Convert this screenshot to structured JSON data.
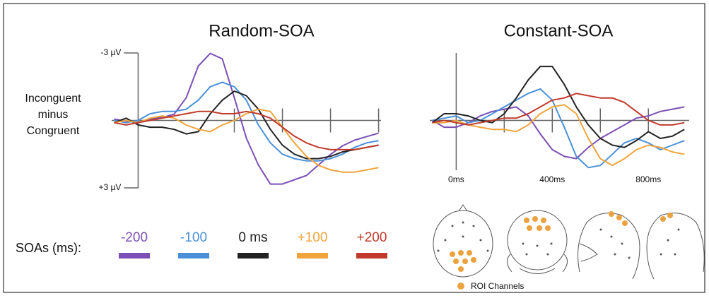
{
  "chart_data": [
    {
      "type": "line",
      "title": "Random-SOA",
      "ylabel": [
        "Inconguent",
        "minus",
        "Congruent"
      ],
      "legend_title": "SOAs (ms):",
      "xlim": [
        -110,
        1010
      ],
      "ylim": [
        3,
        -3
      ],
      "yticks": [
        {
          "value": -3,
          "label": "-3 µV"
        },
        {
          "value": 3,
          "label": "+3 µV"
        }
      ],
      "minor_xticks": [
        400,
        600,
        800,
        1000
      ],
      "x": [
        -100,
        -50,
        0,
        50,
        100,
        150,
        200,
        250,
        300,
        350,
        400,
        450,
        500,
        550,
        600,
        650,
        700,
        750,
        800,
        850,
        900,
        950,
        1000
      ],
      "series": [
        {
          "name": "-200",
          "color": "#7b4fb5",
          "values": [
            -0.06,
            0.03,
            0.09,
            -0.06,
            -0.13,
            -0.28,
            -1.01,
            -2.42,
            -2.98,
            -2.74,
            -1.01,
            0.79,
            1.98,
            2.83,
            2.83,
            2.64,
            2.45,
            1.98,
            1.51,
            1.13,
            0.88,
            0.72,
            0.57
          ]
        },
        {
          "name": "-100",
          "color": "#4a90d9",
          "values": [
            0.0,
            0.1,
            0.0,
            -0.3,
            -0.4,
            -0.4,
            -0.5,
            -0.9,
            -1.5,
            -1.7,
            -1.5,
            -0.9,
            0.2,
            1.0,
            1.5,
            1.7,
            1.8,
            1.8,
            1.7,
            1.5,
            1.2,
            1.0,
            0.9
          ]
        },
        {
          "name": "0 ms",
          "color": "#222222",
          "values": [
            0.1,
            -0.1,
            0.2,
            0.3,
            0.3,
            0.4,
            0.6,
            0.5,
            -0.3,
            -0.9,
            -1.3,
            -1.1,
            -0.5,
            0.4,
            1.1,
            1.5,
            1.7,
            1.7,
            1.6,
            1.4,
            1.3,
            1.2,
            1.1
          ]
        },
        {
          "name": "+100",
          "color": "#f0a43c",
          "values": [
            0.1,
            0.0,
            0.1,
            -0.1,
            -0.2,
            -0.1,
            0.2,
            0.4,
            0.5,
            0.2,
            0.0,
            -0.3,
            -0.5,
            -0.4,
            0.3,
            1.0,
            1.6,
            2.0,
            2.2,
            2.3,
            2.3,
            2.2,
            2.1
          ]
        },
        {
          "name": "+200",
          "color": "#c0392b",
          "values": [
            0.1,
            0.2,
            0.1,
            0.0,
            -0.1,
            -0.2,
            -0.3,
            -0.4,
            -0.4,
            -0.3,
            -0.3,
            -0.4,
            -0.3,
            -0.1,
            0.3,
            0.7,
            1.0,
            1.2,
            1.3,
            1.3,
            1.3,
            1.2,
            1.1
          ]
        }
      ]
    },
    {
      "type": "line",
      "title": "Constant-SOA",
      "xlim": [
        -110,
        970
      ],
      "ylim": [
        3,
        -3
      ],
      "xticks": [
        {
          "value": 0,
          "label": "0ms"
        },
        {
          "value": 400,
          "label": "400ms"
        },
        {
          "value": 800,
          "label": "800ms"
        }
      ],
      "minor_xticks": [
        200,
        600
      ],
      "x": [
        -100,
        -50,
        0,
        50,
        100,
        150,
        200,
        250,
        300,
        350,
        400,
        450,
        500,
        550,
        600,
        650,
        700,
        750,
        800,
        850,
        900,
        950
      ],
      "series": [
        {
          "color": "#7b4fb5",
          "values": [
            0.0,
            0.3,
            0.3,
            0.1,
            -0.2,
            -0.4,
            -0.5,
            -0.6,
            -0.2,
            0.6,
            1.3,
            1.6,
            1.7,
            1.2,
            0.8,
            0.5,
            0.2,
            -0.1,
            -0.2,
            -0.4,
            -0.5,
            -0.6
          ]
        },
        {
          "color": "#4a90d9",
          "values": [
            0.0,
            -0.1,
            -0.2,
            0.1,
            0.0,
            -0.3,
            -0.6,
            -0.9,
            -1.2,
            -1.4,
            -0.9,
            0.3,
            1.6,
            2.1,
            2.0,
            1.5,
            1.0,
            0.8,
            1.0,
            1.3,
            1.1,
            0.9
          ]
        },
        {
          "color": "#222222",
          "values": [
            0.1,
            -0.3,
            -0.3,
            -0.2,
            0.0,
            0.1,
            -0.3,
            -1.0,
            -1.8,
            -2.4,
            -2.4,
            -1.6,
            -0.6,
            0.2,
            0.8,
            1.1,
            1.2,
            0.9,
            0.5,
            0.8,
            0.7,
            0.4
          ]
        },
        {
          "color": "#f0a43c",
          "values": [
            0.1,
            0.1,
            0.0,
            0.2,
            0.3,
            0.4,
            0.4,
            0.5,
            0.2,
            -0.3,
            -0.6,
            -0.7,
            -0.3,
            0.8,
            1.7,
            2.0,
            1.7,
            1.3,
            1.1,
            1.2,
            1.4,
            1.5
          ]
        },
        {
          "color": "#c0392b",
          "values": [
            0.1,
            0.0,
            0.1,
            0.2,
            0.1,
            0.0,
            -0.1,
            -0.1,
            -0.3,
            -0.6,
            -0.9,
            -1.0,
            -1.2,
            -1.1,
            -1.0,
            -1.0,
            -0.8,
            -0.4,
            0.0,
            0.2,
            0.2,
            0.1
          ]
        }
      ]
    }
  ],
  "roi_label": "ROI Channels"
}
